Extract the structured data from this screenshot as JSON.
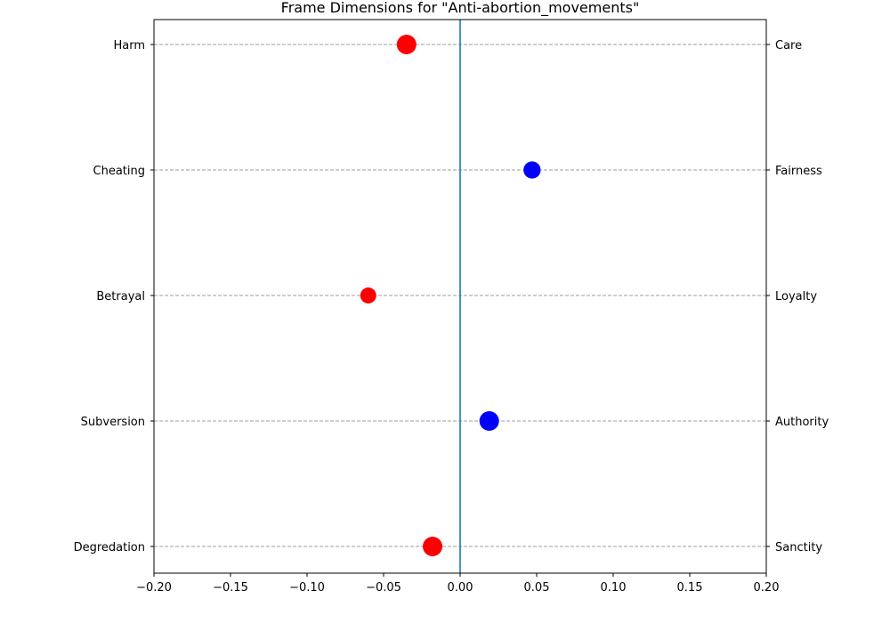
{
  "chart_data": {
    "type": "scatter",
    "title": "Frame Dimensions for \"Anti-abortion_movements\"",
    "xlim": [
      -0.2,
      0.2
    ],
    "x_ticks": [
      -0.2,
      -0.15,
      -0.1,
      -0.05,
      0.0,
      0.05,
      0.1,
      0.15,
      0.2
    ],
    "x_tick_labels": [
      "−0.20",
      "−0.15",
      "−0.10",
      "−0.05",
      "0.00",
      "0.05",
      "0.10",
      "0.15",
      "0.20"
    ],
    "grid": "horizontal dashed at each category",
    "reference_line_x": 0,
    "reference_line_color": "#1f77b4",
    "negative_color": "#ff0000",
    "positive_color": "#0000ff",
    "dimensions": [
      {
        "left_label": "Harm",
        "right_label": "Care",
        "value": -0.035,
        "magnitude": 1.0
      },
      {
        "left_label": "Cheating",
        "right_label": "Fairness",
        "value": 0.047,
        "magnitude": 0.7
      },
      {
        "left_label": "Betrayal",
        "right_label": "Loyalty",
        "value": -0.06,
        "magnitude": 0.55
      },
      {
        "left_label": "Subversion",
        "right_label": "Authority",
        "value": 0.019,
        "magnitude": 1.0
      },
      {
        "left_label": "Degredation",
        "right_label": "Sanctity",
        "value": -0.018,
        "magnitude": 1.0
      }
    ]
  }
}
